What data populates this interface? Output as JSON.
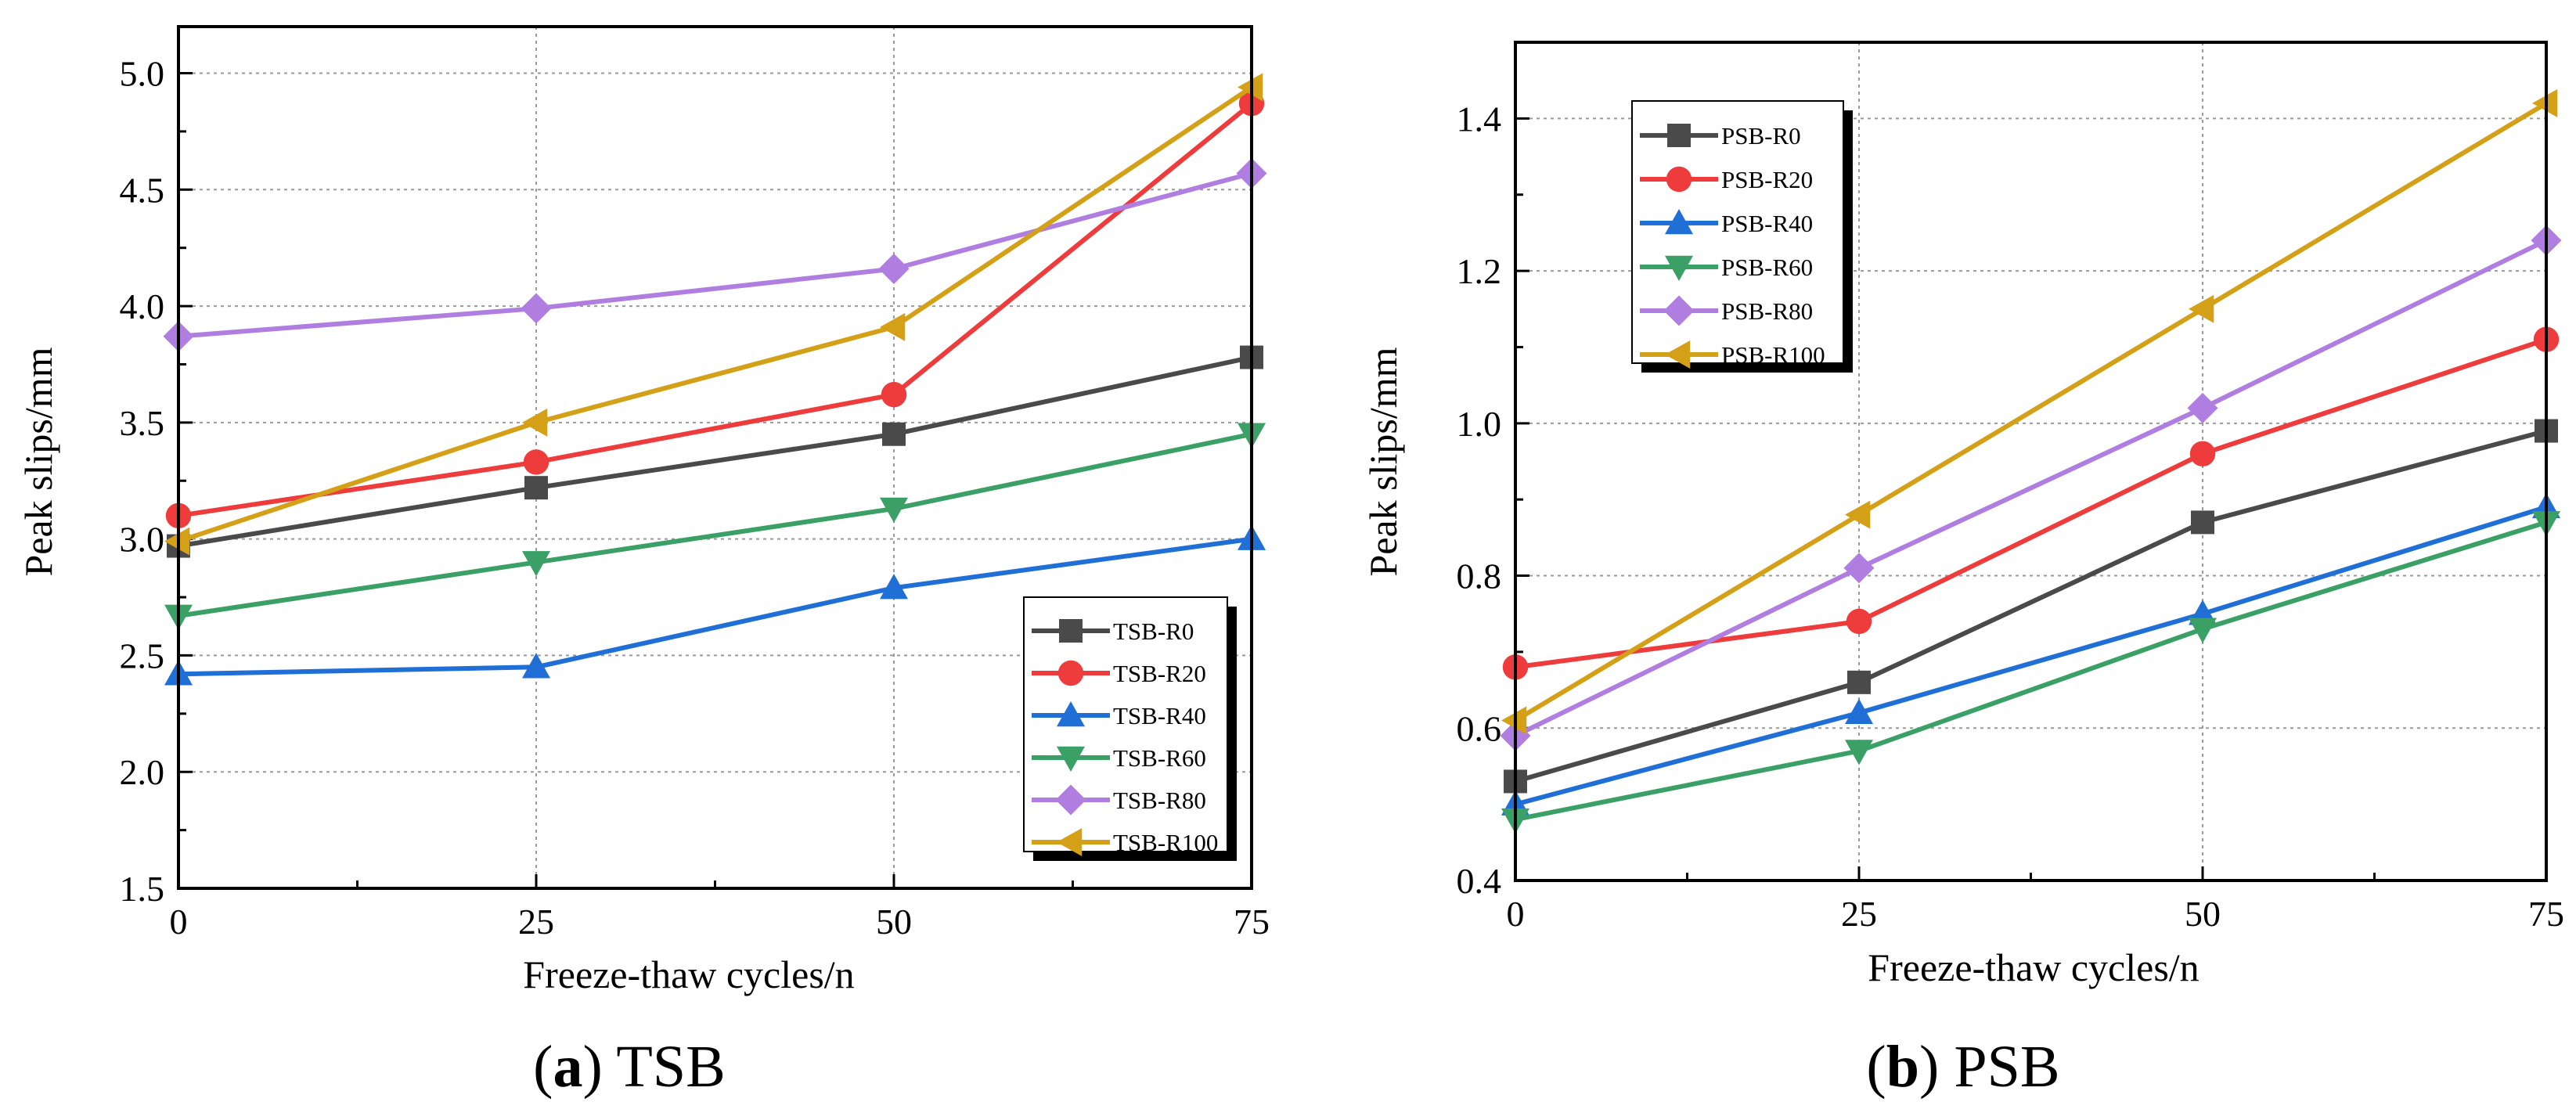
{
  "figure": {
    "background": "#ffffff"
  },
  "chart_data": [
    {
      "id": "a",
      "type": "line",
      "panel_tag": "a",
      "caption": "TSB",
      "xlabel": "Freeze-thaw cycles/n",
      "ylabel": "Peak slips/mm",
      "x": [
        0,
        25,
        50,
        75
      ],
      "xticks": [
        "0",
        "25",
        "50",
        "75"
      ],
      "xlim": [
        0,
        75
      ],
      "ylim": [
        1.5,
        5.2
      ],
      "yticks": [
        "1.5",
        "2.0",
        "2.5",
        "3.0",
        "3.5",
        "4.0",
        "4.5",
        "5.0"
      ],
      "ytick_values": [
        1.5,
        2.0,
        2.5,
        3.0,
        3.5,
        4.0,
        4.5,
        5.0
      ],
      "grid": true,
      "legend_position": "bottom-right",
      "series": [
        {
          "name": "TSB-R0",
          "color": "#4a4a4a",
          "marker": "square",
          "values": [
            2.97,
            3.22,
            3.45,
            3.78
          ]
        },
        {
          "name": "TSB-R20",
          "color": "#ee3b3b",
          "marker": "circle",
          "values": [
            3.1,
            3.33,
            3.62,
            4.87
          ]
        },
        {
          "name": "TSB-R40",
          "color": "#1f6fd6",
          "marker": "triangle-up",
          "values": [
            2.42,
            2.45,
            2.79,
            3.0
          ]
        },
        {
          "name": "TSB-R60",
          "color": "#3aa066",
          "marker": "triangle-down",
          "values": [
            2.67,
            2.9,
            3.13,
            3.45
          ]
        },
        {
          "name": "TSB-R80",
          "color": "#b07ee0",
          "marker": "diamond",
          "values": [
            3.87,
            3.99,
            4.16,
            4.57
          ]
        },
        {
          "name": "TSB-R100",
          "color": "#d4a017",
          "marker": "triangle-left",
          "values": [
            2.99,
            3.5,
            3.91,
            4.94
          ]
        }
      ]
    },
    {
      "id": "b",
      "type": "line",
      "panel_tag": "b",
      "caption": "PSB",
      "xlabel": "Freeze-thaw cycles/n",
      "ylabel": "Peak slips/mm",
      "x": [
        0,
        25,
        50,
        75
      ],
      "xticks": [
        "0",
        "25",
        "50",
        "75"
      ],
      "xlim": [
        0,
        75
      ],
      "ylim": [
        0.4,
        1.5
      ],
      "yticks": [
        "0.4",
        "0.6",
        "0.8",
        "1.0",
        "1.2",
        "1.4"
      ],
      "ytick_values": [
        0.4,
        0.6,
        0.8,
        1.0,
        1.2,
        1.4
      ],
      "grid": true,
      "legend_position": "top-left",
      "series": [
        {
          "name": "PSB-R0",
          "color": "#4a4a4a",
          "marker": "square",
          "values": [
            0.53,
            0.66,
            0.87,
            0.99
          ]
        },
        {
          "name": "PSB-R20",
          "color": "#ee3b3b",
          "marker": "circle",
          "values": [
            0.68,
            0.74,
            0.96,
            1.11
          ]
        },
        {
          "name": "PSB-R40",
          "color": "#1f6fd6",
          "marker": "triangle-up",
          "values": [
            0.5,
            0.62,
            0.75,
            0.89
          ]
        },
        {
          "name": "PSB-R60",
          "color": "#3aa066",
          "marker": "triangle-down",
          "values": [
            0.48,
            0.57,
            0.73,
            0.87
          ]
        },
        {
          "name": "PSB-R80",
          "color": "#b07ee0",
          "marker": "diamond",
          "values": [
            0.59,
            0.81,
            1.02,
            1.24
          ]
        },
        {
          "name": "PSB-R100",
          "color": "#d4a017",
          "marker": "triangle-left",
          "values": [
            0.61,
            0.88,
            1.15,
            1.42
          ]
        }
      ]
    }
  ]
}
